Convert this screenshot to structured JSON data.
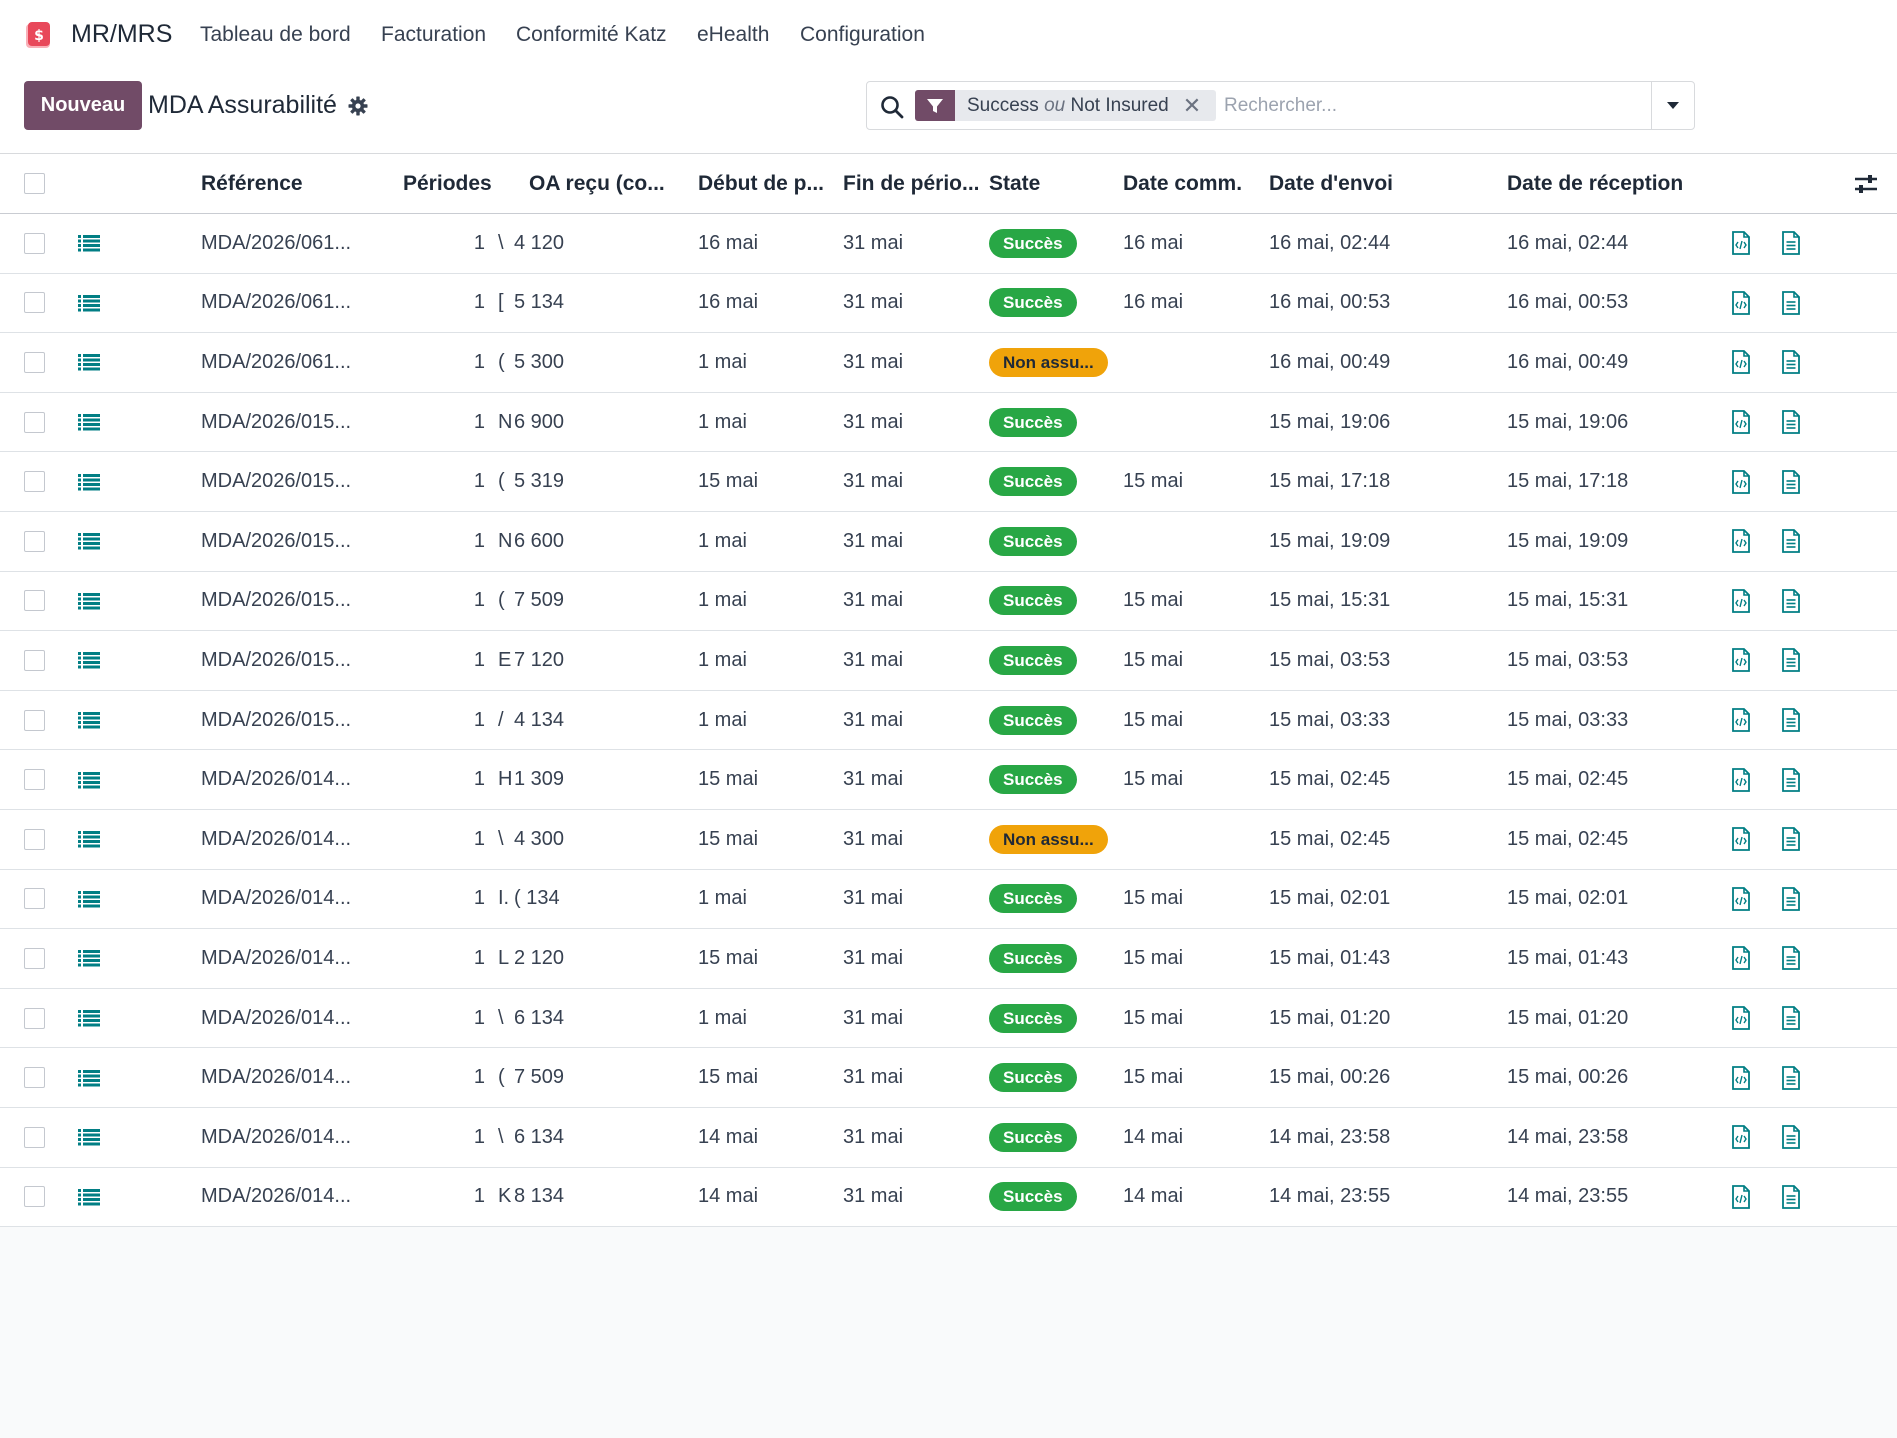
{
  "app": {
    "name": "MR/MRS"
  },
  "nav": [
    "Tableau de bord",
    "Facturation",
    "Conformité Katz",
    "eHealth",
    "Configuration"
  ],
  "toolbar": {
    "new_label": "Nouveau",
    "title": "MDA Assurabilité"
  },
  "search": {
    "facet_a": "Success",
    "facet_or": "ou",
    "facet_b": "Not Insured",
    "placeholder": "Rechercher..."
  },
  "colors": {
    "brand": "#714B67",
    "success": "#28a745",
    "warning": "#f0a30a",
    "icon_teal": "#017e84"
  },
  "table": {
    "columns": [
      "Référence",
      "Périodes",
      "OA reçu (co...",
      "Début de p...",
      "Fin de pério...",
      "State",
      "Date comm.",
      "Date d'envoi",
      "Date de réception"
    ],
    "rows": [
      {
        "ref": "MDA/2026/061...",
        "periods": "1",
        "oa_code": "\\",
        "oa_num": "4 120",
        "start": "16 mai",
        "end": "31 mai",
        "state": "Succès",
        "state_type": "success",
        "comm": "16 mai",
        "sent": "16 mai, 02:44",
        "received": "16 mai, 02:44"
      },
      {
        "ref": "MDA/2026/061...",
        "periods": "1",
        "oa_code": "[",
        "oa_num": "5 134",
        "start": "16 mai",
        "end": "31 mai",
        "state": "Succès",
        "state_type": "success",
        "comm": "16 mai",
        "sent": "16 mai, 00:53",
        "received": "16 mai, 00:53"
      },
      {
        "ref": "MDA/2026/061...",
        "periods": "1",
        "oa_code": "(",
        "oa_num": "5 300",
        "start": "1 mai",
        "end": "31 mai",
        "state": "Non assu...",
        "state_type": "warning",
        "comm": "",
        "sent": "16 mai, 00:49",
        "received": "16 mai, 00:49"
      },
      {
        "ref": "MDA/2026/015...",
        "periods": "1",
        "oa_code": "N",
        "oa_num": "6 900",
        "start": "1 mai",
        "end": "31 mai",
        "state": "Succès",
        "state_type": "success",
        "comm": "",
        "sent": "15 mai, 19:06",
        "received": "15 mai, 19:06"
      },
      {
        "ref": "MDA/2026/015...",
        "periods": "1",
        "oa_code": "(",
        "oa_num": "5 319",
        "start": "15 mai",
        "end": "31 mai",
        "state": "Succès",
        "state_type": "success",
        "comm": "15 mai",
        "sent": "15 mai, 17:18",
        "received": "15 mai, 17:18"
      },
      {
        "ref": "MDA/2026/015...",
        "periods": "1",
        "oa_code": "N",
        "oa_num": "6 600",
        "start": "1 mai",
        "end": "31 mai",
        "state": "Succès",
        "state_type": "success",
        "comm": "",
        "sent": "15 mai, 19:09",
        "received": "15 mai, 19:09"
      },
      {
        "ref": "MDA/2026/015...",
        "periods": "1",
        "oa_code": "(",
        "oa_num": "7 509",
        "start": "1 mai",
        "end": "31 mai",
        "state": "Succès",
        "state_type": "success",
        "comm": "15 mai",
        "sent": "15 mai, 15:31",
        "received": "15 mai, 15:31"
      },
      {
        "ref": "MDA/2026/015...",
        "periods": "1",
        "oa_code": "E",
        "oa_num": "7 120",
        "start": "1 mai",
        "end": "31 mai",
        "state": "Succès",
        "state_type": "success",
        "comm": "15 mai",
        "sent": "15 mai, 03:53",
        "received": "15 mai, 03:53"
      },
      {
        "ref": "MDA/2026/015...",
        "periods": "1",
        "oa_code": "/",
        "oa_num": "4 134",
        "start": "1 mai",
        "end": "31 mai",
        "state": "Succès",
        "state_type": "success",
        "comm": "15 mai",
        "sent": "15 mai, 03:33",
        "received": "15 mai, 03:33"
      },
      {
        "ref": "MDA/2026/014...",
        "periods": "1",
        "oa_code": "H",
        "oa_num": "1 309",
        "start": "15 mai",
        "end": "31 mai",
        "state": "Succès",
        "state_type": "success",
        "comm": "15 mai",
        "sent": "15 mai, 02:45",
        "received": "15 mai, 02:45"
      },
      {
        "ref": "MDA/2026/014...",
        "periods": "1",
        "oa_code": "\\",
        "oa_num": "4 300",
        "start": "15 mai",
        "end": "31 mai",
        "state": "Non assu...",
        "state_type": "warning",
        "comm": "",
        "sent": "15 mai, 02:45",
        "received": "15 mai, 02:45"
      },
      {
        "ref": "MDA/2026/014...",
        "periods": "1",
        "oa_code": "I.",
        "oa_num": "( 134",
        "start": "1 mai",
        "end": "31 mai",
        "state": "Succès",
        "state_type": "success",
        "comm": "15 mai",
        "sent": "15 mai, 02:01",
        "received": "15 mai, 02:01"
      },
      {
        "ref": "MDA/2026/014...",
        "periods": "1",
        "oa_code": "L",
        "oa_num": "2 120",
        "start": "15 mai",
        "end": "31 mai",
        "state": "Succès",
        "state_type": "success",
        "comm": "15 mai",
        "sent": "15 mai, 01:43",
        "received": "15 mai, 01:43"
      },
      {
        "ref": "MDA/2026/014...",
        "periods": "1",
        "oa_code": "\\",
        "oa_num": "6 134",
        "start": "1 mai",
        "end": "31 mai",
        "state": "Succès",
        "state_type": "success",
        "comm": "15 mai",
        "sent": "15 mai, 01:20",
        "received": "15 mai, 01:20"
      },
      {
        "ref": "MDA/2026/014...",
        "periods": "1",
        "oa_code": "(",
        "oa_num": "7 509",
        "start": "15 mai",
        "end": "31 mai",
        "state": "Succès",
        "state_type": "success",
        "comm": "15 mai",
        "sent": "15 mai, 00:26",
        "received": "15 mai, 00:26"
      },
      {
        "ref": "MDA/2026/014...",
        "periods": "1",
        "oa_code": "\\",
        "oa_num": "6 134",
        "start": "14 mai",
        "end": "31 mai",
        "state": "Succès",
        "state_type": "success",
        "comm": "14 mai",
        "sent": "14 mai, 23:58",
        "received": "14 mai, 23:58"
      },
      {
        "ref": "MDA/2026/014...",
        "periods": "1",
        "oa_code": "K",
        "oa_num": "8 134",
        "start": "14 mai",
        "end": "31 mai",
        "state": "Succès",
        "state_type": "success",
        "comm": "14 mai",
        "sent": "14 mai, 23:55",
        "received": "14 mai, 23:55"
      }
    ]
  }
}
